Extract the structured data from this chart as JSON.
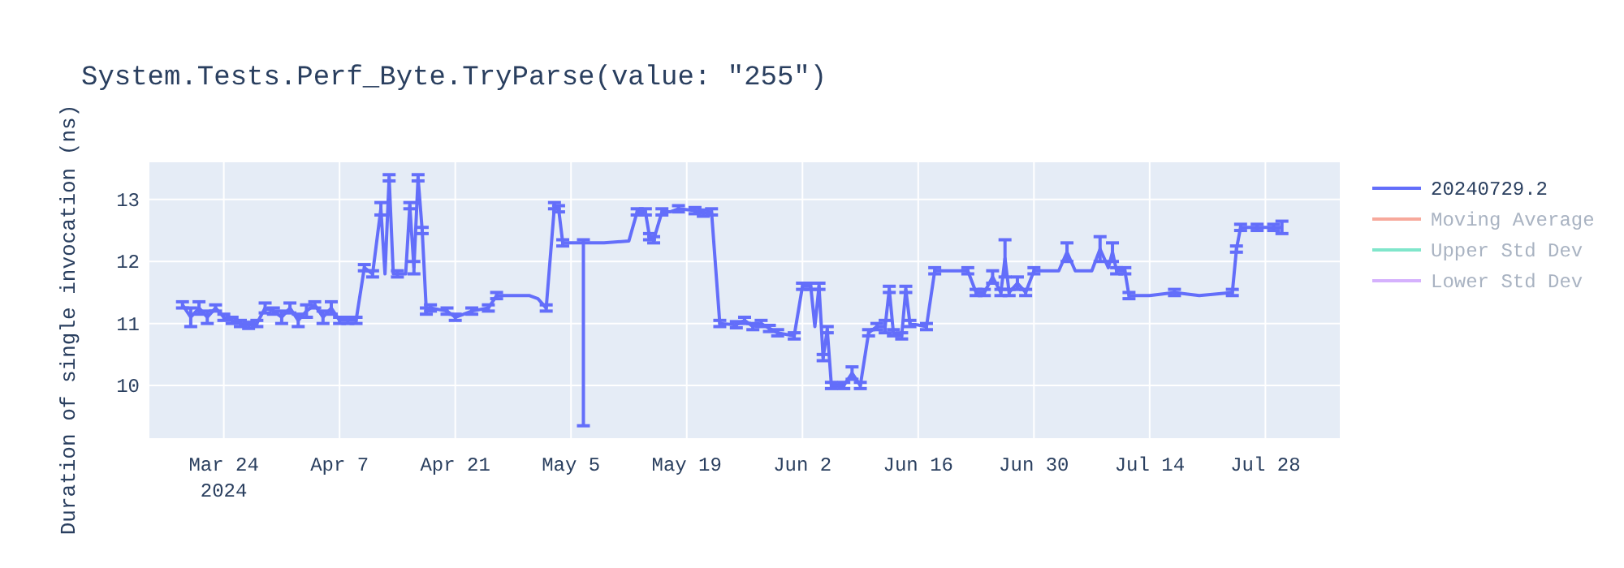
{
  "chart_data": {
    "type": "line",
    "title": "System.Tests.Perf_Byte.TryParse(value: \"255\")",
    "ylabel": "Duration of single invocation (ns)",
    "xlim": [
      "2024-03-15",
      "2024-08-06"
    ],
    "xticks": [
      {
        "value": "2024-03-24",
        "label": "Mar 24\n2024"
      },
      {
        "value": "2024-04-07",
        "label": "Apr 7"
      },
      {
        "value": "2024-04-21",
        "label": "Apr 21"
      },
      {
        "value": "2024-05-05",
        "label": "May 5"
      },
      {
        "value": "2024-05-19",
        "label": "May 19"
      },
      {
        "value": "2024-06-02",
        "label": "Jun 2"
      },
      {
        "value": "2024-06-16",
        "label": "Jun 16"
      },
      {
        "value": "2024-06-30",
        "label": "Jun 30"
      },
      {
        "value": "2024-07-14",
        "label": "Jul 14"
      },
      {
        "value": "2024-07-28",
        "label": "Jul 28"
      }
    ],
    "ylim": [
      9.15,
      13.6
    ],
    "yticks": [
      10,
      11,
      12,
      13
    ],
    "grid": true,
    "legend": "top right",
    "series": [
      {
        "name": "20240729.2",
        "color": "#636efa",
        "x": [
          "2024-03-19",
          "2024-03-20",
          "2024-03-21",
          "2024-03-22",
          "2024-03-23",
          "2024-03-24",
          "2024-03-25",
          "2024-03-26",
          "2024-03-27",
          "2024-03-28",
          "2024-03-29",
          "2024-03-30",
          "2024-03-31",
          "2024-04-01",
          "2024-04-02",
          "2024-04-03",
          "2024-04-04",
          "2024-04-05",
          "2024-04-06",
          "2024-04-07",
          "2024-04-08",
          "2024-04-09",
          "2024-04-10",
          "2024-04-11",
          "2024-04-12",
          "2024-04-12T12:00",
          "2024-04-13",
          "2024-04-13T12:00",
          "2024-04-14",
          "2024-04-15",
          "2024-04-15T12:00",
          "2024-04-16",
          "2024-04-16T12:00",
          "2024-04-17",
          "2024-04-17T12:00",
          "2024-04-18",
          "2024-04-20",
          "2024-04-21",
          "2024-04-23",
          "2024-04-25",
          "2024-04-26",
          "2024-04-30",
          "2024-05-01",
          "2024-05-02",
          "2024-05-03",
          "2024-05-03T12:00",
          "2024-05-04",
          "2024-05-06",
          "2024-05-06T12:00",
          "2024-05-09",
          "2024-05-12",
          "2024-05-13",
          "2024-05-14",
          "2024-05-14T12:00",
          "2024-05-15",
          "2024-05-16",
          "2024-05-17",
          "2024-05-18",
          "2024-05-20",
          "2024-05-21",
          "2024-05-22",
          "2024-05-23",
          "2024-05-25",
          "2024-05-26",
          "2024-05-27",
          "2024-05-28",
          "2024-05-29",
          "2024-05-30",
          "2024-06-01",
          "2024-06-02",
          "2024-06-03",
          "2024-06-03T12:00",
          "2024-06-04",
          "2024-06-04T12:00",
          "2024-06-05",
          "2024-06-05T12:00",
          "2024-06-07",
          "2024-06-08",
          "2024-06-09",
          "2024-06-10",
          "2024-06-11",
          "2024-06-12",
          "2024-06-12T12:00",
          "2024-06-13",
          "2024-06-14",
          "2024-06-14T12:00",
          "2024-06-15",
          "2024-06-17",
          "2024-06-18",
          "2024-06-20",
          "2024-06-22",
          "2024-06-23",
          "2024-06-24",
          "2024-06-25",
          "2024-06-26",
          "2024-06-26T12:00",
          "2024-06-27",
          "2024-06-28",
          "2024-06-29",
          "2024-06-30",
          "2024-07-03",
          "2024-07-04",
          "2024-07-05",
          "2024-07-07",
          "2024-07-08",
          "2024-07-09",
          "2024-07-09T12:00",
          "2024-07-10",
          "2024-07-11",
          "2024-07-11T12:00",
          "2024-07-14",
          "2024-07-17",
          "2024-07-20",
          "2024-07-24",
          "2024-07-24T12:00",
          "2024-07-25",
          "2024-07-27",
          "2024-07-29",
          "2024-07-30"
        ],
        "values": [
          11.3,
          11.1,
          11.25,
          11.1,
          11.25,
          11.1,
          11.05,
          11.0,
          10.97,
          11.0,
          11.25,
          11.2,
          11.1,
          11.25,
          11.05,
          11.2,
          11.3,
          11.1,
          11.25,
          11.05,
          11.05,
          11.05,
          11.9,
          11.8,
          12.85,
          11.8,
          13.35,
          11.8,
          11.8,
          11.8,
          12.9,
          11.9,
          13.35,
          12.5,
          11.2,
          11.25,
          11.2,
          11.1,
          11.2,
          11.25,
          11.45,
          11.45,
          11.4,
          11.25,
          12.9,
          12.85,
          12.3,
          12.3,
          12.3,
          12.3,
          12.33,
          12.8,
          12.8,
          12.4,
          12.35,
          12.8,
          12.8,
          12.85,
          12.82,
          12.78,
          12.8,
          11.0,
          10.98,
          11.05,
          10.95,
          11.0,
          10.92,
          10.85,
          10.8,
          11.6,
          11.6,
          10.95,
          11.6,
          10.45,
          10.9,
          10.0,
          10.0,
          10.2,
          10.0,
          10.85,
          10.95,
          10.95,
          11.55,
          10.85,
          10.8,
          11.55,
          11.0,
          10.95,
          11.85,
          11.85,
          11.85,
          11.5,
          11.5,
          11.75,
          11.5,
          12.05,
          11.5,
          11.65,
          11.5,
          11.85,
          11.85,
          12.15,
          11.85,
          11.85,
          12.2,
          11.9,
          12.15,
          11.85,
          11.85,
          11.45,
          11.45,
          11.5,
          11.45,
          11.5,
          12.2,
          12.55,
          12.55,
          12.55,
          12.55
        ],
        "errors": [
          0.05,
          0.15,
          0.1,
          0.1,
          0.05,
          0.05,
          0.05,
          0.05,
          0.05,
          0.05,
          0.08,
          0.05,
          0.1,
          0.08,
          0.1,
          0.1,
          0.05,
          0.1,
          0.1,
          0.05,
          0.05,
          0.05,
          0.05,
          0.05,
          0.1,
          null,
          0.05,
          null,
          0.05,
          null,
          0.05,
          0.1,
          0.05,
          0.05,
          0.05,
          0.05,
          0.05,
          0.05,
          0.05,
          0.05,
          0.05,
          null,
          null,
          0.05,
          0.05,
          0.05,
          0.05,
          null,
          [
            9.35,
            12.35
          ],
          null,
          null,
          0.05,
          0.05,
          0.05,
          0.05,
          0.05,
          null,
          0.05,
          0.05,
          0.05,
          0.05,
          0.05,
          0.05,
          0.05,
          0.05,
          0.05,
          0.05,
          0.05,
          0.05,
          0.05,
          0.05,
          null,
          0.05,
          0.05,
          0.05,
          0.05,
          0.05,
          0.1,
          0.05,
          0.05,
          0.05,
          0.1,
          0.05,
          0.05,
          0.05,
          0.05,
          0.05,
          0.05,
          0.05,
          null,
          0.05,
          0.05,
          0.05,
          0.1,
          0.05,
          0.3,
          0.05,
          0.1,
          0.05,
          0.05,
          null,
          0.15,
          null,
          null,
          0.2,
          null,
          0.15,
          0.05,
          0.05,
          0.05,
          null,
          0.05,
          null,
          0.05,
          0.05,
          0.05,
          0.05,
          0.05,
          0.1
        ]
      },
      {
        "name": "Moving Average",
        "color": "#f7a99c"
      },
      {
        "name": "Upper Std Dev",
        "color": "#80e6cb"
      },
      {
        "name": "Lower Std Dev",
        "color": "#d5b1fd"
      }
    ]
  }
}
